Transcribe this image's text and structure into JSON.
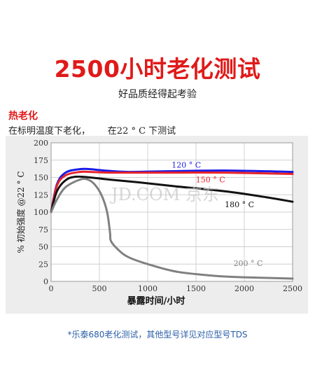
{
  "header": {
    "title": "2500小时老化测试",
    "subtitle": "好品质经得起考验"
  },
  "section": {
    "label": "热老化",
    "condition": "在标明温度下老化，      在22 ° C 下测试"
  },
  "watermark": "JD.COM 京东",
  "footnote": "*乐泰680老化测试，其他型号详见对应型号TDS",
  "colors": {
    "title": "#e01a1a",
    "footnote": "#2a5fa8",
    "series_120": "#1a1ae6",
    "series_150": "#e8232a",
    "series_180": "#111111",
    "series_200": "#808080"
  },
  "chart_data": {
    "type": "line",
    "xlabel": "暴露时间/小时",
    "ylabel": "% 初始强度   @22 ° C",
    "xlim": [
      0,
      2500
    ],
    "ylim": [
      0,
      200
    ],
    "xticks": [
      0,
      500,
      1000,
      1500,
      2000,
      2500
    ],
    "yticks": [
      0,
      25,
      50,
      75,
      100,
      125,
      150,
      175,
      200
    ],
    "grid": true,
    "series": [
      {
        "name": "120 ° C",
        "color": "#1a1ae6",
        "points": [
          [
            0,
            100
          ],
          [
            60,
            140
          ],
          [
            150,
            157
          ],
          [
            300,
            162
          ],
          [
            400,
            162
          ],
          [
            550,
            160
          ],
          [
            800,
            158
          ],
          [
            1200,
            159
          ],
          [
            1800,
            160
          ],
          [
            2500,
            158
          ]
        ]
      },
      {
        "name": "150 ° C",
        "color": "#e8232a",
        "points": [
          [
            0,
            100
          ],
          [
            60,
            138
          ],
          [
            150,
            153
          ],
          [
            300,
            158
          ],
          [
            400,
            158
          ],
          [
            600,
            157
          ],
          [
            900,
            157
          ],
          [
            1300,
            157
          ],
          [
            1800,
            157
          ],
          [
            2500,
            155
          ]
        ]
      },
      {
        "name": "180 ° C",
        "color": "#111111",
        "points": [
          [
            0,
            100
          ],
          [
            60,
            130
          ],
          [
            150,
            146
          ],
          [
            250,
            151
          ],
          [
            400,
            150
          ],
          [
            600,
            147
          ],
          [
            900,
            143
          ],
          [
            1300,
            137
          ],
          [
            1800,
            130
          ],
          [
            2200,
            122
          ],
          [
            2500,
            115
          ]
        ]
      },
      {
        "name": "200 ° C",
        "color": "#808080",
        "points": [
          [
            0,
            100
          ],
          [
            60,
            118
          ],
          [
            150,
            136
          ],
          [
            300,
            147
          ],
          [
            380,
            147
          ],
          [
            450,
            140
          ],
          [
            520,
            125
          ],
          [
            580,
            100
          ],
          [
            610,
            70
          ],
          [
            620,
            58
          ],
          [
            700,
            45
          ],
          [
            800,
            35
          ],
          [
            1000,
            25
          ],
          [
            1300,
            14
          ],
          [
            1700,
            8
          ],
          [
            2000,
            6
          ],
          [
            2500,
            4
          ]
        ]
      }
    ]
  }
}
